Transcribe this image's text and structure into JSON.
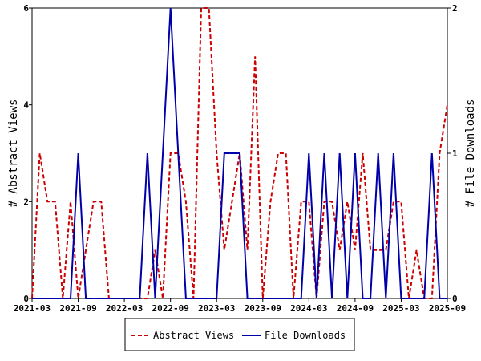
{
  "chart_data": {
    "type": "line",
    "title": "",
    "xlabel": "",
    "ylabel_left": "# Abstract Views",
    "ylabel_right": "# File Downloads",
    "x_range": [
      "2021-03",
      "2025-09"
    ],
    "x_ticks": [
      "2021-03",
      "2021-09",
      "2022-03",
      "2022-09",
      "2023-03",
      "2023-09",
      "2024-03",
      "2024-09",
      "2025-03",
      "2025-09"
    ],
    "ylim_left": [
      0,
      6
    ],
    "ylim_right": [
      0,
      2
    ],
    "y_ticks_left": [
      "0",
      "2",
      "4",
      "6"
    ],
    "y_ticks_right": [
      "0",
      "1",
      "2"
    ],
    "grid": false,
    "legend_position": "bottom",
    "series": [
      {
        "name": "Abstract Views",
        "axis": "left",
        "color": "#cc0000",
        "dash": "dashed",
        "points": [
          [
            "2021-03",
            0
          ],
          [
            "2021-04",
            3
          ],
          [
            "2021-05",
            2
          ],
          [
            "2021-06",
            2
          ],
          [
            "2021-07",
            0
          ],
          [
            "2021-08",
            2
          ],
          [
            "2021-09",
            0
          ],
          [
            "2021-10",
            1
          ],
          [
            "2021-11",
            2
          ],
          [
            "2021-12",
            2
          ],
          [
            "2022-01",
            0
          ],
          [
            "2022-02",
            0
          ],
          [
            "2022-03",
            0
          ],
          [
            "2022-04",
            0
          ],
          [
            "2022-05",
            0
          ],
          [
            "2022-06",
            0
          ],
          [
            "2022-07",
            1
          ],
          [
            "2022-08",
            0
          ],
          [
            "2022-09",
            3
          ],
          [
            "2022-10",
            3
          ],
          [
            "2022-11",
            2
          ],
          [
            "2022-12",
            0
          ],
          [
            "2023-01",
            6
          ],
          [
            "2023-02",
            6
          ],
          [
            "2023-03",
            3
          ],
          [
            "2023-04",
            1
          ],
          [
            "2023-05",
            2
          ],
          [
            "2023-06",
            3
          ],
          [
            "2023-07",
            1
          ],
          [
            "2023-08",
            5
          ],
          [
            "2023-09",
            0
          ],
          [
            "2023-10",
            2
          ],
          [
            "2023-11",
            3
          ],
          [
            "2023-12",
            3
          ],
          [
            "2024-01",
            0
          ],
          [
            "2024-02",
            2
          ],
          [
            "2024-03",
            2
          ],
          [
            "2024-04",
            0
          ],
          [
            "2024-05",
            2
          ],
          [
            "2024-06",
            2
          ],
          [
            "2024-07",
            1
          ],
          [
            "2024-08",
            2
          ],
          [
            "2024-09",
            1
          ],
          [
            "2024-10",
            3
          ],
          [
            "2024-11",
            1
          ],
          [
            "2024-12",
            1
          ],
          [
            "2025-01",
            1
          ],
          [
            "2025-02",
            2
          ],
          [
            "2025-03",
            2
          ],
          [
            "2025-04",
            0
          ],
          [
            "2025-05",
            1
          ],
          [
            "2025-06",
            0
          ],
          [
            "2025-07",
            0
          ],
          [
            "2025-08",
            3
          ],
          [
            "2025-09",
            4
          ]
        ]
      },
      {
        "name": "File Downloads",
        "axis": "right",
        "color": "#0000aa",
        "dash": "solid",
        "points": [
          [
            "2021-03",
            0
          ],
          [
            "2021-04",
            0
          ],
          [
            "2021-05",
            0
          ],
          [
            "2021-06",
            0
          ],
          [
            "2021-07",
            0
          ],
          [
            "2021-08",
            0
          ],
          [
            "2021-09",
            1
          ],
          [
            "2021-10",
            0
          ],
          [
            "2021-11",
            0
          ],
          [
            "2021-12",
            0
          ],
          [
            "2022-01",
            0
          ],
          [
            "2022-02",
            0
          ],
          [
            "2022-03",
            0
          ],
          [
            "2022-04",
            0
          ],
          [
            "2022-05",
            0
          ],
          [
            "2022-06",
            1
          ],
          [
            "2022-07",
            0
          ],
          [
            "2022-08",
            1
          ],
          [
            "2022-09",
            2
          ],
          [
            "2022-10",
            1
          ],
          [
            "2022-11",
            0
          ],
          [
            "2022-12",
            0
          ],
          [
            "2023-01",
            0
          ],
          [
            "2023-02",
            0
          ],
          [
            "2023-03",
            0
          ],
          [
            "2023-04",
            1
          ],
          [
            "2023-05",
            1
          ],
          [
            "2023-06",
            1
          ],
          [
            "2023-07",
            0
          ],
          [
            "2023-08",
            0
          ],
          [
            "2023-09",
            0
          ],
          [
            "2023-10",
            0
          ],
          [
            "2023-11",
            0
          ],
          [
            "2023-12",
            0
          ],
          [
            "2024-01",
            0
          ],
          [
            "2024-02",
            0
          ],
          [
            "2024-03",
            1
          ],
          [
            "2024-04",
            0
          ],
          [
            "2024-05",
            1
          ],
          [
            "2024-06",
            0
          ],
          [
            "2024-07",
            1
          ],
          [
            "2024-08",
            0
          ],
          [
            "2024-09",
            1
          ],
          [
            "2024-10",
            0
          ],
          [
            "2024-11",
            0
          ],
          [
            "2024-12",
            1
          ],
          [
            "2025-01",
            0
          ],
          [
            "2025-02",
            1
          ],
          [
            "2025-03",
            0
          ],
          [
            "2025-04",
            0
          ],
          [
            "2025-05",
            0
          ],
          [
            "2025-06",
            0
          ],
          [
            "2025-07",
            1
          ],
          [
            "2025-08",
            0
          ],
          [
            "2025-09",
            0
          ]
        ]
      }
    ]
  }
}
